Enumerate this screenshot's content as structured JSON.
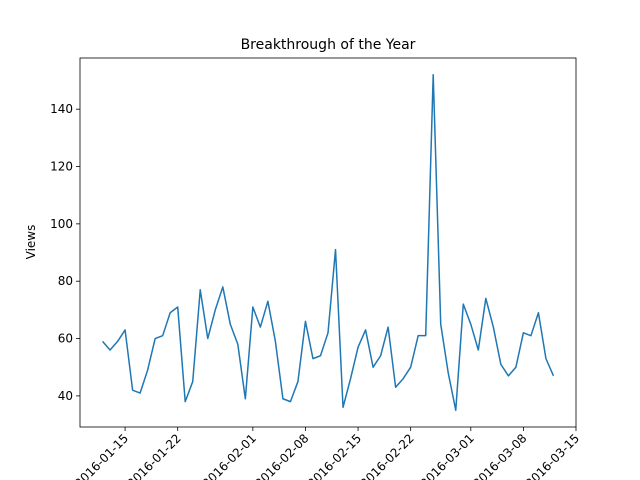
{
  "chart_data": {
    "type": "line",
    "title": "Breakthrough of the Year",
    "ylabel": "Views",
    "color": "#1f77b4",
    "x": [
      "2016-01-12",
      "2016-01-13",
      "2016-01-14",
      "2016-01-15",
      "2016-01-16",
      "2016-01-17",
      "2016-01-18",
      "2016-01-19",
      "2016-01-20",
      "2016-01-21",
      "2016-01-22",
      "2016-01-23",
      "2016-01-24",
      "2016-01-25",
      "2016-01-26",
      "2016-01-27",
      "2016-01-28",
      "2016-01-29",
      "2016-01-30",
      "2016-01-31",
      "2016-02-01",
      "2016-02-02",
      "2016-02-03",
      "2016-02-04",
      "2016-02-05",
      "2016-02-06",
      "2016-02-07",
      "2016-02-08",
      "2016-02-09",
      "2016-02-10",
      "2016-02-11",
      "2016-02-12",
      "2016-02-13",
      "2016-02-14",
      "2016-02-15",
      "2016-02-16",
      "2016-02-17",
      "2016-02-18",
      "2016-02-19",
      "2016-02-20",
      "2016-02-21",
      "2016-02-22",
      "2016-02-23",
      "2016-02-24",
      "2016-02-25",
      "2016-02-26",
      "2016-02-27",
      "2016-02-28",
      "2016-02-29",
      "2016-03-01",
      "2016-03-02",
      "2016-03-03",
      "2016-03-04",
      "2016-03-05",
      "2016-03-06",
      "2016-03-07",
      "2016-03-08",
      "2016-03-09",
      "2016-03-10",
      "2016-03-11",
      "2016-03-12"
    ],
    "values": [
      59,
      56,
      59,
      63,
      42,
      41,
      49,
      60,
      61,
      69,
      71,
      38,
      45,
      77,
      60,
      70,
      78,
      65,
      58,
      39,
      71,
      64,
      73,
      59,
      39,
      38,
      45,
      66,
      53,
      54,
      62,
      91,
      36,
      46,
      57,
      63,
      50,
      54,
      64,
      43,
      46,
      50,
      61,
      61,
      152,
      65,
      48,
      35,
      72,
      65,
      56,
      74,
      64,
      51,
      47,
      50,
      62,
      61,
      69,
      53,
      47
    ],
    "xlim": [
      "2016-01-09",
      "2016-03-15"
    ],
    "xticks": [
      "2016-01-15",
      "2016-01-22",
      "2016-02-01",
      "2016-02-08",
      "2016-02-15",
      "2016-02-22",
      "2016-03-01",
      "2016-03-08",
      "2016-03-15"
    ],
    "ylim": [
      29.15,
      157.85
    ],
    "yticks": [
      40,
      60,
      80,
      100,
      120,
      140
    ]
  }
}
